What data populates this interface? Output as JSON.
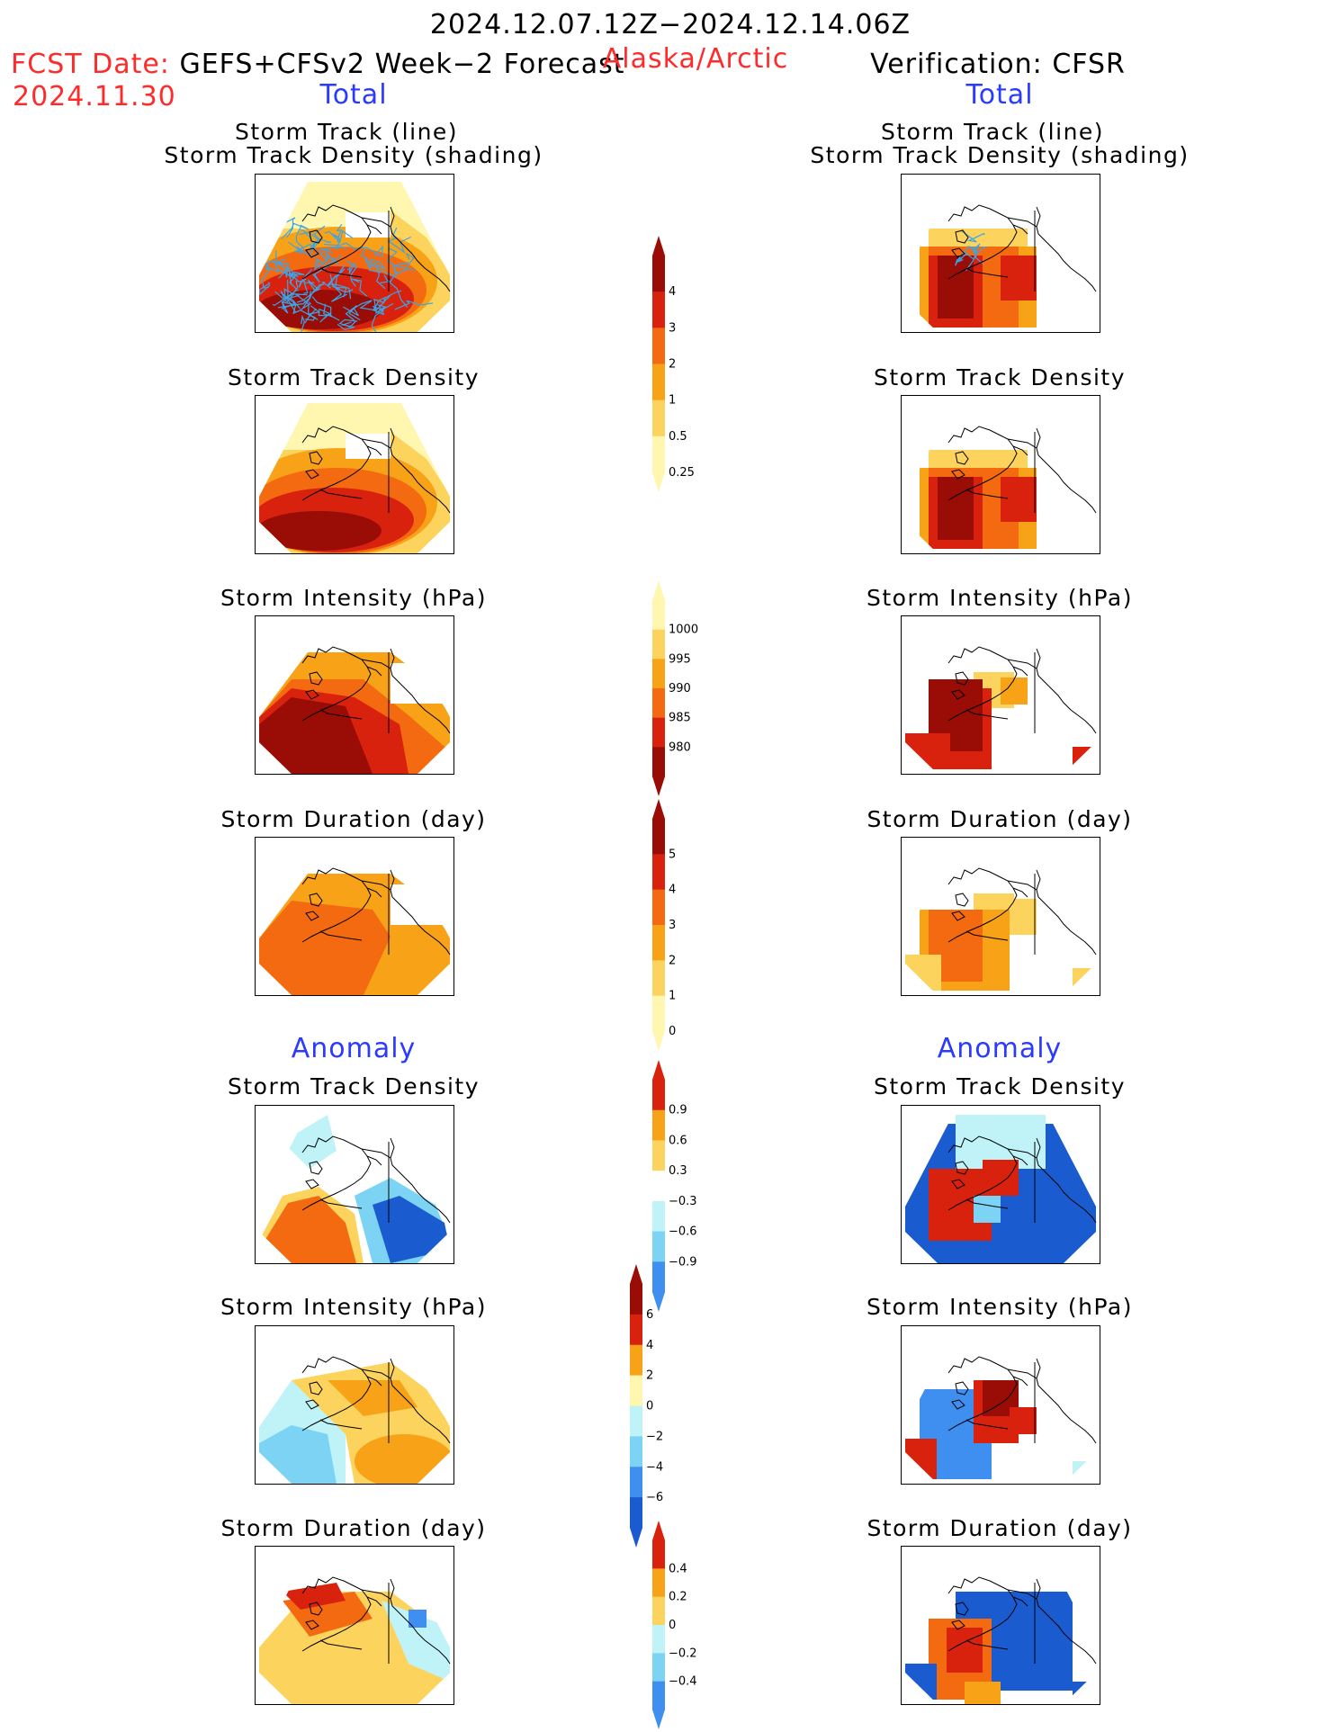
{
  "header": {
    "period": "2024.12.07.12Z−2024.12.14.06Z",
    "fcst_label": "FCST Date:",
    "fcst_model": "GEFS+CFSv2 Week−2 Forecast",
    "fcst_date": "2024.11.30",
    "region": "Alaska/Arctic",
    "verification": "Verification: CFSR"
  },
  "columns": {
    "left_total": "Total",
    "right_total": "Total",
    "left_anomaly": "Anomaly",
    "right_anomaly": "Anomaly"
  },
  "titles": {
    "track_line": "Storm Track (line)",
    "track_shading": "Storm Track Density (shading)",
    "density": "Storm Track Density",
    "intensity": "Storm Intensity (hPa)",
    "duration": "Storm Duration (day)"
  },
  "colorbars": {
    "density_total": [
      "4",
      "3",
      "2",
      "1",
      "0.5",
      "0.25"
    ],
    "intensity_total": [
      "1000",
      "995",
      "990",
      "985",
      "980"
    ],
    "duration_total": [
      "5",
      "4",
      "3",
      "2",
      "1",
      "0"
    ],
    "density_anom": [
      "0.9",
      "0.6",
      "0.3",
      "−0.3",
      "−0.6",
      "−0.9"
    ],
    "intensity_anom": [
      "6",
      "4",
      "2",
      "0",
      "−2",
      "−4",
      "−6"
    ],
    "duration_anom": [
      "0.4",
      "0.2",
      "0",
      "−0.2",
      "−0.4"
    ]
  },
  "colors": {
    "warm": [
      "#fff7b0",
      "#fcd35c",
      "#f8a218",
      "#f46a10",
      "#d8220e",
      "#9a0c06"
    ],
    "cool": [
      "#bff3f8",
      "#7cd3f4",
      "#3f8ff0",
      "#1a5cd0"
    ],
    "track_line": "#3aa6e8",
    "header_red": "#ff2a2a",
    "header_blue": "#2a3aff"
  },
  "panels": [
    {
      "id": "fcst-track",
      "column": "forecast",
      "field": "storm-track-density-with-lines"
    },
    {
      "id": "obs-track",
      "column": "verification",
      "field": "storm-track-density-with-lines"
    },
    {
      "id": "fcst-density",
      "column": "forecast",
      "field": "storm-track-density"
    },
    {
      "id": "obs-density",
      "column": "verification",
      "field": "storm-track-density"
    },
    {
      "id": "fcst-intensity",
      "column": "forecast",
      "field": "storm-intensity"
    },
    {
      "id": "obs-intensity",
      "column": "verification",
      "field": "storm-intensity"
    },
    {
      "id": "fcst-duration",
      "column": "forecast",
      "field": "storm-duration"
    },
    {
      "id": "obs-duration",
      "column": "verification",
      "field": "storm-duration"
    },
    {
      "id": "fcst-density-anom",
      "column": "forecast",
      "field": "storm-track-density-anomaly"
    },
    {
      "id": "obs-density-anom",
      "column": "verification",
      "field": "storm-track-density-anomaly"
    },
    {
      "id": "fcst-intensity-anom",
      "column": "forecast",
      "field": "storm-intensity-anomaly"
    },
    {
      "id": "obs-intensity-anom",
      "column": "verification",
      "field": "storm-intensity-anomaly"
    },
    {
      "id": "fcst-duration-anom",
      "column": "forecast",
      "field": "storm-duration-anomaly"
    },
    {
      "id": "obs-duration-anom",
      "column": "verification",
      "field": "storm-duration-anomaly"
    }
  ]
}
